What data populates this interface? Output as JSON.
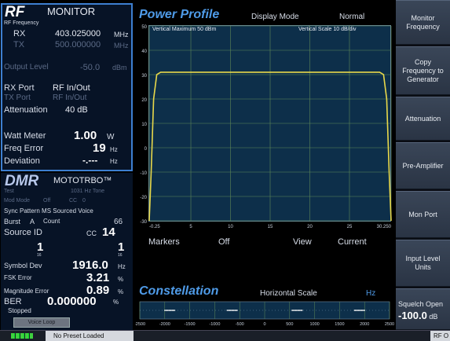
{
  "rf": {
    "title": "RF",
    "mode": "MONITOR",
    "freq_header": "RF Frequency",
    "rx_label": "RX",
    "rx_value": "403.025000",
    "rx_unit": "MHz",
    "tx_label": "TX",
    "tx_value": "500.000000",
    "tx_unit": "MHz",
    "output_level_label": "Output Level",
    "output_level_value": "-50.0",
    "output_level_unit": "dBm",
    "rx_port_label": "RX Port",
    "rx_port_value": "RF In/Out",
    "tx_port_label": "TX Port",
    "tx_port_value": "RF In/Out",
    "attenuation_label": "Attenuation",
    "attenuation_value": "40 dB",
    "watt_meter_label": "Watt Meter",
    "watt_meter_value": "1.00",
    "watt_meter_unit": "W",
    "freq_error_label": "Freq Error",
    "freq_error_value": "19",
    "freq_error_unit": "Hz",
    "deviation_label": "Deviation",
    "deviation_value": "-.---",
    "deviation_unit": "Hz"
  },
  "dmr": {
    "title": "DMR",
    "brand": "MOTOTRBO™",
    "test_label": "Test",
    "test_value": "1031 Hz Tone",
    "mod_mode_label": "Mod Mode",
    "mod_mode_value": "Off",
    "cc_label": "CC",
    "cc_value": "0",
    "sync_pattern": "Sync Pattern MS Sourced Voice",
    "burst_label": "Burst",
    "burst_value": "A",
    "count_label": "Count",
    "count_value": "66",
    "source_id_label": "Source ID",
    "cc2_label": "CC",
    "cc2_value": "14",
    "slot_left": "1",
    "slot_left_sub": "16",
    "slot_right": "1",
    "slot_right_sub": "16",
    "symbol_dev_label": "Symbol Dev",
    "symbol_dev_value": "1916.0",
    "symbol_dev_unit": "Hz",
    "fsk_error_label": "FSK Error",
    "fsk_error_value": "3.21",
    "fsk_error_unit": "%",
    "mag_error_label": "Magnitude Error",
    "mag_error_value": "0.89",
    "mag_error_unit": "%",
    "ber_label": "BER",
    "ber_value": "0.000000",
    "ber_unit": "%",
    "stopped": "Stopped",
    "voice_loop": "Voice Loop"
  },
  "power_profile": {
    "title": "Power Profile",
    "display_mode_label": "Display Mode",
    "display_mode_value": "Normal",
    "vert_max": "Vertical Maximum  50 dBm",
    "vert_scale": "Vertical Scale  10 dB/div",
    "markers_label": "Markers",
    "markers_value": "Off",
    "view_label": "View",
    "view_value": "Current"
  },
  "constellation": {
    "title": "Constellation",
    "hscale_label": "Horizontal Scale",
    "hscale_unit": "Hz"
  },
  "menu": [
    {
      "label": "Monitor Frequency"
    },
    {
      "label": "Copy Frequency to Generator"
    },
    {
      "label": "Attenuation"
    },
    {
      "label": "Pre-Amplifier"
    },
    {
      "label": "Mon Port"
    },
    {
      "label": "Input Level Units"
    },
    {
      "label": "Squelch Open"
    }
  ],
  "squelch_value": "-100.0",
  "squelch_unit": "dB",
  "status": {
    "preset": "No Preset Loaded",
    "right": "RF O"
  },
  "chart_data": {
    "type": "line",
    "title": "Power Profile",
    "xlabel": "",
    "ylabel": "",
    "y_ticks": [
      "50",
      "40",
      "30",
      "20",
      "10",
      "0",
      "-10",
      "-20",
      "-30"
    ],
    "x_ticks": [
      "-0.25",
      "5",
      "10",
      "15",
      "20",
      "25",
      "30.250"
    ],
    "xlim": [
      -0.25,
      30.25
    ],
    "ylim": [
      -30,
      50
    ],
    "grid": true,
    "series": [
      {
        "color": "#e8d84a",
        "x": [
          -0.25,
          0.0,
          0.3,
          0.7,
          1.2,
          10,
          20,
          28.8,
          29.3,
          29.7,
          30.0,
          30.25
        ],
        "y": [
          -30,
          -10,
          20,
          30,
          31,
          31,
          31,
          31,
          30,
          20,
          -10,
          -30
        ]
      }
    ]
  },
  "constellation_data": {
    "x_ticks": [
      "-2500",
      "-2000",
      "-1500",
      "-1000",
      "-500",
      "0",
      "500",
      "1000",
      "1500",
      "2000",
      "2500"
    ],
    "xlim": [
      -2500,
      2500
    ],
    "clusters": [
      -1900,
      -650,
      650,
      1900
    ]
  }
}
